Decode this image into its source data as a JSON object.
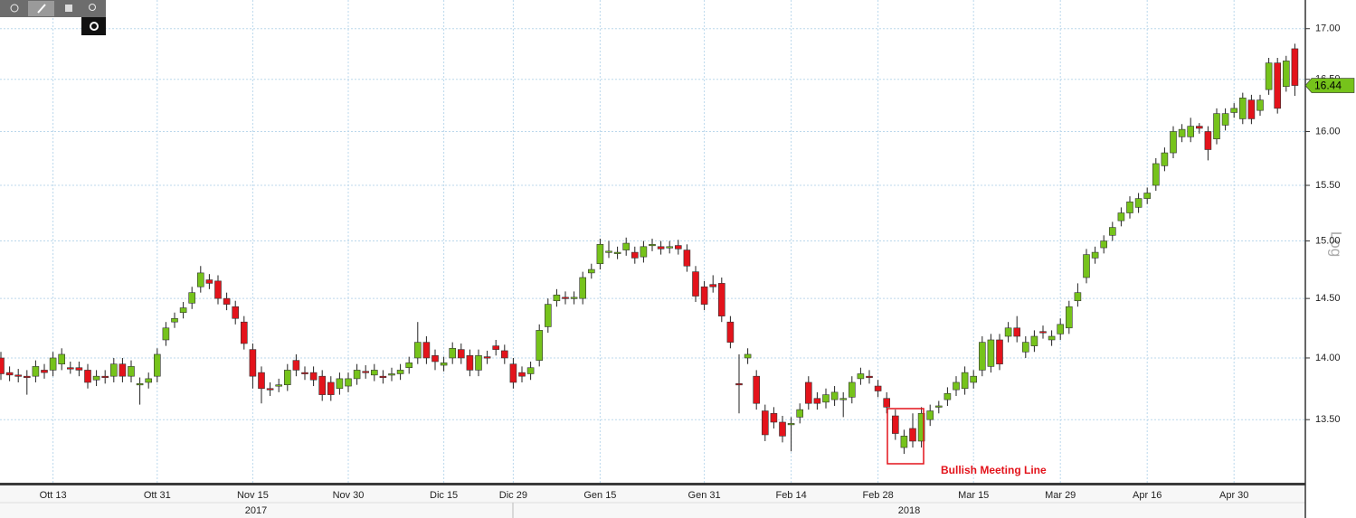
{
  "chart_data": {
    "type": "candlestick",
    "log_scale": true,
    "scale_label": "Log",
    "grid": true,
    "up_color": "#76c31b",
    "down_color": "#e3131b",
    "last_price": 16.44,
    "annotation": "Bullish Meeting Line",
    "year_labels": [
      "2017",
      "2018"
    ],
    "ylim": [
      13.0,
      17.29
    ],
    "yticks": [
      {
        "value": 13.5,
        "label": "13.50"
      },
      {
        "value": 14,
        "label": "14.00"
      },
      {
        "value": 14.5,
        "label": "14.50"
      },
      {
        "value": 15,
        "label": "15.00"
      },
      {
        "value": 15.5,
        "label": "15.50"
      },
      {
        "value": 16,
        "label": "16.00"
      },
      {
        "value": 16.5,
        "label": "16.50"
      },
      {
        "value": 17,
        "label": "17.00"
      }
    ],
    "categories": [
      null,
      null,
      null,
      null,
      null,
      null,
      "Ott 13",
      null,
      null,
      null,
      null,
      null,
      null,
      null,
      null,
      null,
      null,
      null,
      "Ott 31",
      null,
      null,
      null,
      null,
      null,
      null,
      null,
      null,
      null,
      null,
      "Nov 15",
      null,
      null,
      null,
      null,
      null,
      null,
      null,
      null,
      null,
      null,
      "Nov 30",
      null,
      null,
      null,
      null,
      null,
      null,
      null,
      null,
      null,
      null,
      "Dic 15",
      null,
      null,
      null,
      null,
      null,
      null,
      null,
      "Dic 29",
      null,
      null,
      null,
      null,
      null,
      null,
      null,
      null,
      null,
      "Gen 15",
      null,
      null,
      null,
      null,
      null,
      null,
      null,
      null,
      null,
      null,
      null,
      "Gen 31",
      null,
      null,
      null,
      null,
      null,
      null,
      null,
      null,
      null,
      "Feb 14",
      null,
      null,
      null,
      null,
      null,
      null,
      null,
      null,
      null,
      "Feb 28",
      null,
      null,
      null,
      null,
      null,
      null,
      null,
      null,
      null,
      null,
      "Mar 15",
      null,
      null,
      null,
      null,
      null,
      null,
      null,
      null,
      null,
      "Mar 29",
      null,
      null,
      null,
      null,
      null,
      null,
      null,
      null,
      null,
      "Apr 16",
      null,
      null,
      null,
      null,
      null,
      null,
      null,
      null,
      null,
      "Apr 30",
      null,
      null,
      null,
      null,
      null,
      null,
      null
    ],
    "open": [
      14.0,
      13.88,
      13.86,
      13.85,
      13.85,
      13.9,
      13.9,
      13.95,
      13.92,
      13.92,
      13.9,
      13.82,
      13.85,
      13.85,
      13.95,
      13.85,
      13.78,
      13.8,
      13.85,
      14.15,
      14.3,
      14.38,
      14.46,
      14.6,
      14.66,
      14.65,
      14.5,
      14.43,
      14.3,
      14.07,
      13.88,
      13.75,
      13.77,
      13.78,
      13.98,
      13.88,
      13.88,
      13.85,
      13.8,
      13.75,
      13.77,
      13.83,
      13.89,
      13.86,
      13.85,
      13.86,
      13.87,
      13.92,
      14.0,
      14.13,
      14.02,
      13.94,
      14.0,
      14.07,
      14.02,
      13.9,
      14.01,
      14.1,
      14.06,
      13.95,
      13.88,
      13.87,
      13.98,
      14.26,
      14.48,
      14.51,
      14.5,
      14.5,
      14.72,
      14.8,
      14.9,
      14.89,
      14.92,
      14.9,
      14.86,
      14.96,
      14.95,
      14.94,
      14.96,
      14.92,
      14.73,
      14.6,
      14.62,
      14.63,
      14.3,
      13.79,
      14.0,
      13.85,
      13.57,
      13.55,
      13.48,
      13.46,
      13.52,
      13.8,
      13.67,
      13.64,
      13.66,
      13.66,
      13.68,
      13.83,
      13.85,
      13.77,
      13.67,
      13.53,
      13.28,
      13.43,
      13.33,
      13.5,
      13.6,
      13.66,
      13.74,
      13.75,
      13.8,
      13.9,
      13.93,
      14.15,
      14.18,
      14.25,
      14.05,
      14.1,
      14.22,
      14.15,
      14.2,
      14.25,
      14.48,
      14.68,
      14.85,
      14.94,
      15.05,
      15.18,
      15.25,
      15.3,
      15.38,
      15.5,
      15.68,
      15.8,
      15.95,
      15.95,
      16.05,
      16.0,
      15.93,
      16.06,
      16.18,
      16.12,
      16.3,
      16.2,
      16.4,
      16.66,
      16.43,
      16.8
    ],
    "high": [
      14.05,
      13.93,
      13.91,
      13.9,
      13.98,
      13.95,
      14.05,
      14.08,
      13.97,
      13.97,
      13.95,
      13.9,
      13.9,
      14.0,
      14.0,
      13.98,
      13.84,
      13.88,
      14.08,
      14.3,
      14.38,
      14.47,
      14.6,
      14.78,
      14.71,
      14.7,
      14.55,
      14.48,
      14.35,
      14.12,
      13.93,
      13.8,
      13.83,
      13.95,
      14.03,
      13.93,
      13.93,
      13.9,
      13.85,
      13.88,
      13.88,
      13.95,
      13.94,
      13.95,
      13.9,
      13.92,
      13.95,
      14.01,
      14.3,
      14.18,
      14.07,
      14.01,
      14.13,
      14.12,
      14.07,
      14.07,
      14.06,
      14.15,
      14.11,
      14.0,
      13.93,
      13.97,
      14.28,
      14.5,
      14.58,
      14.56,
      14.56,
      14.73,
      14.8,
      15.02,
      15.0,
      14.95,
      15.03,
      14.95,
      15.0,
      15.02,
      15.0,
      15.0,
      15.01,
      14.97,
      14.78,
      14.65,
      14.7,
      14.68,
      14.35,
      14.03,
      14.08,
      13.9,
      13.62,
      13.6,
      13.53,
      13.52,
      13.63,
      13.85,
      13.72,
      13.75,
      13.77,
      13.72,
      13.85,
      13.92,
      13.9,
      13.82,
      13.72,
      13.58,
      13.42,
      13.55,
      13.6,
      13.62,
      13.65,
      13.76,
      13.85,
      13.93,
      13.9,
      14.18,
      14.2,
      14.2,
      14.3,
      14.35,
      14.18,
      14.23,
      14.27,
      14.23,
      14.33,
      14.48,
      14.63,
      14.93,
      14.95,
      15.05,
      15.17,
      15.3,
      15.4,
      15.43,
      15.48,
      15.75,
      15.85,
      16.05,
      16.07,
      16.13,
      16.08,
      16.05,
      16.22,
      16.22,
      16.27,
      16.37,
      16.35,
      16.35,
      16.71,
      16.71,
      16.73,
      16.85
    ],
    "low": [
      13.82,
      13.81,
      13.8,
      13.7,
      13.8,
      13.83,
      13.85,
      13.9,
      13.87,
      13.85,
      13.75,
      13.77,
      13.79,
      13.8,
      13.8,
      13.8,
      13.62,
      13.75,
      13.8,
      14.1,
      14.25,
      14.33,
      14.41,
      14.55,
      14.58,
      14.45,
      14.4,
      14.28,
      14.07,
      13.75,
      13.63,
      13.69,
      13.72,
      13.73,
      13.85,
      13.82,
      13.77,
      13.65,
      13.65,
      13.7,
      13.72,
      13.78,
      13.83,
      13.81,
      13.79,
      13.81,
      13.82,
      13.87,
      13.95,
      13.95,
      13.9,
      13.89,
      13.95,
      13.95,
      13.85,
      13.85,
      13.95,
      14.02,
      13.95,
      13.75,
      13.8,
      13.82,
      13.93,
      14.21,
      14.43,
      14.45,
      14.45,
      14.45,
      14.67,
      14.75,
      14.85,
      14.84,
      14.87,
      14.8,
      14.81,
      14.91,
      14.88,
      14.89,
      14.88,
      14.73,
      14.47,
      14.4,
      14.55,
      14.3,
      14.08,
      13.55,
      13.95,
      13.58,
      13.33,
      13.43,
      13.32,
      13.25,
      13.47,
      13.58,
      13.58,
      13.59,
      13.61,
      13.52,
      13.63,
      13.78,
      13.79,
      13.68,
      13.55,
      13.34,
      13.23,
      13.28,
      13.28,
      13.45,
      13.55,
      13.61,
      13.69,
      13.7,
      13.75,
      13.85,
      13.88,
      13.9,
      14.13,
      14.13,
      14.0,
      14.05,
      14.16,
      14.1,
      14.15,
      14.2,
      14.43,
      14.63,
      14.8,
      14.89,
      15.0,
      15.13,
      15.2,
      15.25,
      15.33,
      15.45,
      15.63,
      15.75,
      15.9,
      15.9,
      15.98,
      15.73,
      15.88,
      16.01,
      16.13,
      16.07,
      16.07,
      16.15,
      16.35,
      16.17,
      16.38,
      16.34
    ],
    "close": [
      13.87,
      13.86,
      13.85,
      13.84,
      13.93,
      13.88,
      14.0,
      14.03,
      13.91,
      13.9,
      13.8,
      13.85,
      13.84,
      13.95,
      13.85,
      13.93,
      13.79,
      13.83,
      14.03,
      14.25,
      14.33,
      14.42,
      14.55,
      14.72,
      14.63,
      14.5,
      14.45,
      14.33,
      14.12,
      13.85,
      13.75,
      13.74,
      13.78,
      13.9,
      13.9,
      13.87,
      13.82,
      13.7,
      13.7,
      13.83,
      13.83,
      13.9,
      13.88,
      13.9,
      13.84,
      13.87,
      13.9,
      13.96,
      14.13,
      14.0,
      13.97,
      13.96,
      14.08,
      14.0,
      13.9,
      14.02,
      14.0,
      14.07,
      14.0,
      13.8,
      13.85,
      13.92,
      14.23,
      14.45,
      14.53,
      14.5,
      14.51,
      14.68,
      14.75,
      14.97,
      14.91,
      14.9,
      14.98,
      14.85,
      14.95,
      14.97,
      14.93,
      14.95,
      14.93,
      14.78,
      14.52,
      14.45,
      14.6,
      14.35,
      14.13,
      13.78,
      14.03,
      13.63,
      13.38,
      13.48,
      13.37,
      13.47,
      13.58,
      13.63,
      13.63,
      13.7,
      13.72,
      13.67,
      13.8,
      13.87,
      13.84,
      13.73,
      13.6,
      13.39,
      13.37,
      13.33,
      13.55,
      13.57,
      13.61,
      13.71,
      13.8,
      13.88,
      13.85,
      14.13,
      14.15,
      13.95,
      14.25,
      14.18,
      14.13,
      14.18,
      14.21,
      14.18,
      14.28,
      14.43,
      14.55,
      14.88,
      14.9,
      15.0,
      15.12,
      15.25,
      15.35,
      15.38,
      15.43,
      15.7,
      15.8,
      16.0,
      16.02,
      16.05,
      16.03,
      15.83,
      16.17,
      16.17,
      16.22,
      16.32,
      16.12,
      16.3,
      16.66,
      16.22,
      16.68,
      16.44
    ]
  }
}
